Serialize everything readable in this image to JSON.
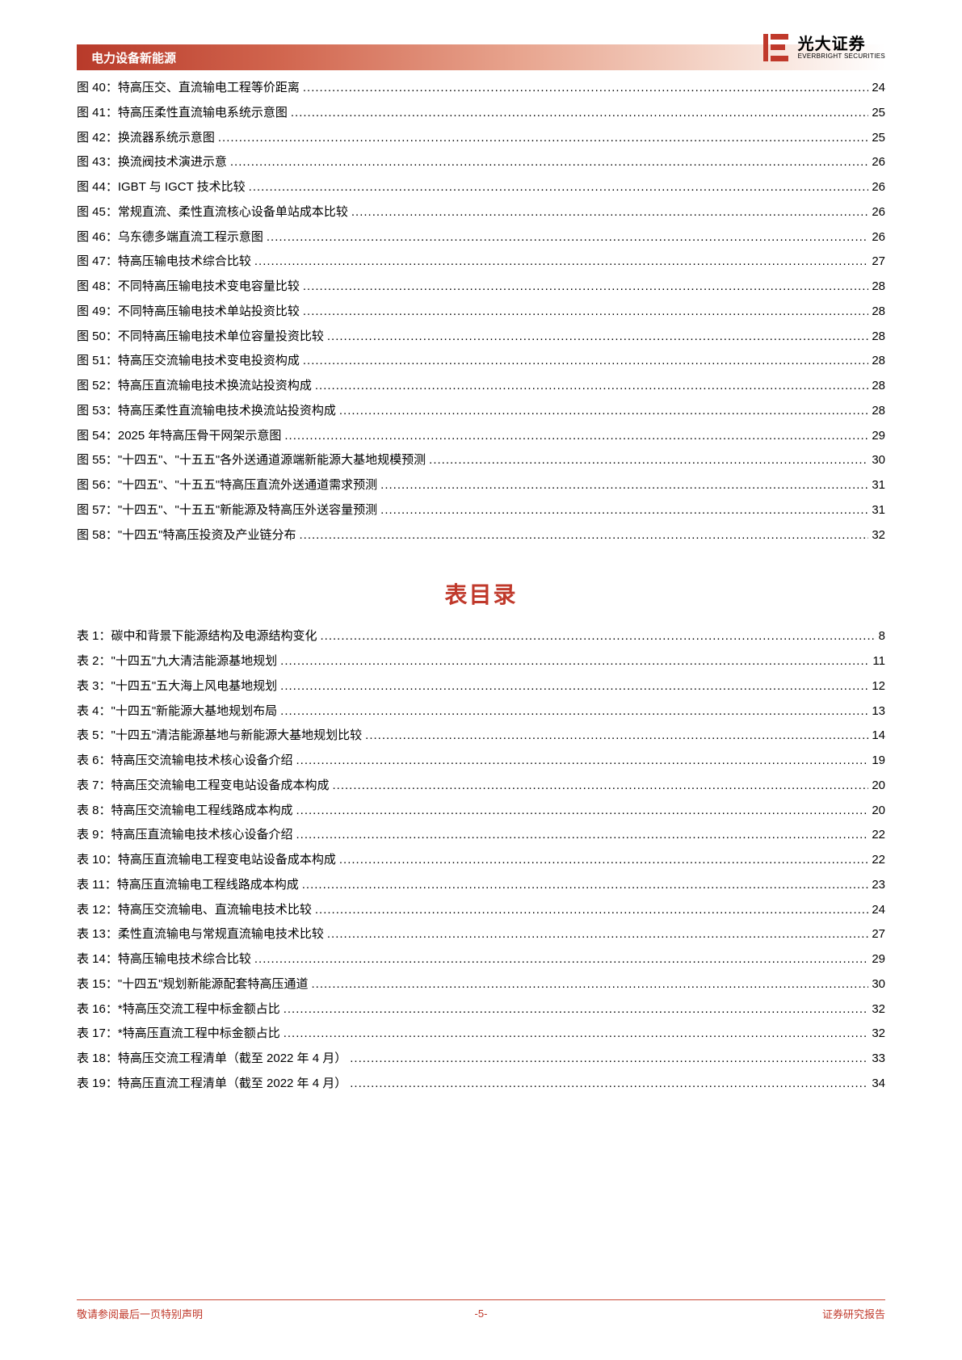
{
  "header": {
    "category": "电力设备新能源"
  },
  "logo": {
    "cn": "光大证券",
    "en": "EVERBRIGHT SECURITIES"
  },
  "colors": {
    "brand_red": "#c0392b",
    "header_grad_start": "#b83a2a",
    "header_grad_end": "#ffffff",
    "text": "#000000",
    "background": "#ffffff"
  },
  "figures": [
    {
      "n": "图 40",
      "t": "特高压交、直流输电工程等价距离",
      "p": "24"
    },
    {
      "n": "图 41",
      "t": "特高压柔性直流输电系统示意图",
      "p": "25"
    },
    {
      "n": "图 42",
      "t": "换流器系统示意图",
      "p": "25"
    },
    {
      "n": "图 43",
      "t": "换流阀技术演进示意",
      "p": "26"
    },
    {
      "n": "图 44",
      "t": "IGBT 与 IGCT 技术比较",
      "p": "26"
    },
    {
      "n": "图 45",
      "t": "常规直流、柔性直流核心设备单站成本比较",
      "p": "26"
    },
    {
      "n": "图 46",
      "t": "乌东德多端直流工程示意图",
      "p": "26"
    },
    {
      "n": "图 47",
      "t": "特高压输电技术综合比较",
      "p": "27"
    },
    {
      "n": "图 48",
      "t": "不同特高压输电技术变电容量比较",
      "p": "28"
    },
    {
      "n": "图 49",
      "t": "不同特高压输电技术单站投资比较",
      "p": "28"
    },
    {
      "n": "图 50",
      "t": "不同特高压输电技术单位容量投资比较",
      "p": "28"
    },
    {
      "n": "图 51",
      "t": "特高压交流输电技术变电投资构成",
      "p": "28"
    },
    {
      "n": "图 52",
      "t": "特高压直流输电技术换流站投资构成",
      "p": "28"
    },
    {
      "n": "图 53",
      "t": "特高压柔性直流输电技术换流站投资构成",
      "p": "28"
    },
    {
      "n": "图 54",
      "t": "2025 年特高压骨干网架示意图",
      "p": "29"
    },
    {
      "n": "图 55",
      "t": "\"十四五\"、\"十五五\"各外送通道源端新能源大基地规模预测",
      "p": "30"
    },
    {
      "n": "图 56",
      "t": "\"十四五\"、\"十五五\"特高压直流外送通道需求预测",
      "p": "31"
    },
    {
      "n": "图 57",
      "t": "\"十四五\"、\"十五五\"新能源及特高压外送容量预测",
      "p": "31"
    },
    {
      "n": "图 58",
      "t": "\"十四五\"特高压投资及产业链分布",
      "p": "32"
    }
  ],
  "tables_title": "表目录",
  "tables": [
    {
      "n": "表 1",
      "t": "碳中和背景下能源结构及电源结构变化",
      "p": "8"
    },
    {
      "n": "表 2",
      "t": "\"十四五\"九大清洁能源基地规划",
      "p": "11"
    },
    {
      "n": "表 3",
      "t": "\"十四五\"五大海上风电基地规划",
      "p": "12"
    },
    {
      "n": "表 4",
      "t": "\"十四五\"新能源大基地规划布局",
      "p": "13"
    },
    {
      "n": "表 5",
      "t": "\"十四五\"清洁能源基地与新能源大基地规划比较",
      "p": "14"
    },
    {
      "n": "表 6",
      "t": "特高压交流输电技术核心设备介绍",
      "p": "19"
    },
    {
      "n": "表 7",
      "t": "特高压交流输电工程变电站设备成本构成",
      "p": "20"
    },
    {
      "n": "表 8",
      "t": "特高压交流输电工程线路成本构成",
      "p": "20"
    },
    {
      "n": "表 9",
      "t": "特高压直流输电技术核心设备介绍",
      "p": "22"
    },
    {
      "n": "表 10",
      "t": "特高压直流输电工程变电站设备成本构成",
      "p": "22"
    },
    {
      "n": "表 11",
      "t": "特高压直流输电工程线路成本构成",
      "p": "23"
    },
    {
      "n": "表 12",
      "t": "特高压交流输电、直流输电技术比较",
      "p": "24"
    },
    {
      "n": "表 13",
      "t": "柔性直流输电与常规直流输电技术比较",
      "p": "27"
    },
    {
      "n": "表 14",
      "t": "特高压输电技术综合比较",
      "p": "29"
    },
    {
      "n": "表 15",
      "t": "\"十四五\"规划新能源配套特高压通道",
      "p": "30"
    },
    {
      "n": "表 16",
      "t": "*特高压交流工程中标金额占比",
      "p": "32"
    },
    {
      "n": "表 17",
      "t": "*特高压直流工程中标金额占比",
      "p": "32"
    },
    {
      "n": "表 18",
      "t": "特高压交流工程清单（截至 2022 年 4 月）",
      "p": "33"
    },
    {
      "n": "表 19",
      "t": "特高压直流工程清单（截至 2022 年 4 月）",
      "p": "34"
    }
  ],
  "footer": {
    "left": "敬请参阅最后一页特别声明",
    "center": "-5-",
    "right": "证券研究报告"
  }
}
